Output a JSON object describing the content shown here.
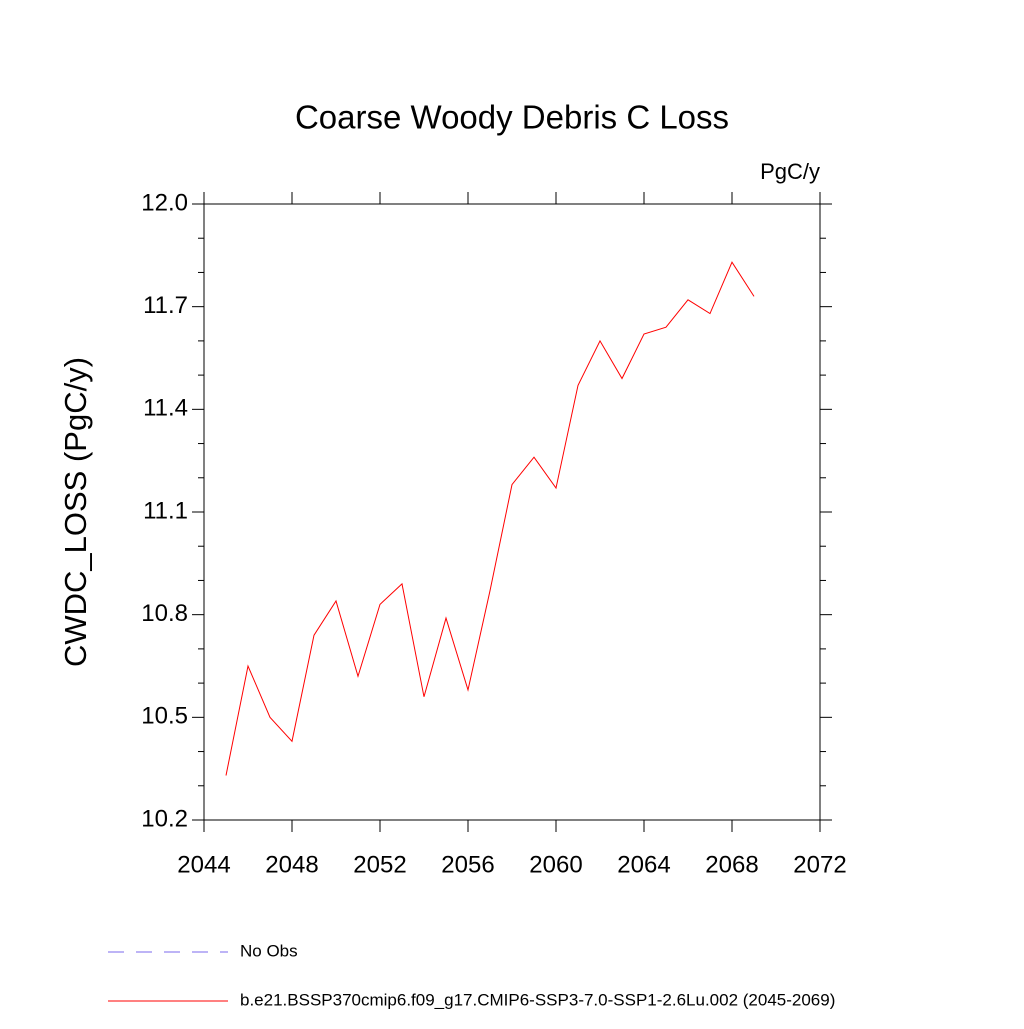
{
  "chart_data": {
    "type": "line",
    "title": "Coarse Woody Debris C Loss",
    "units": "PgC/y",
    "y_label": "CWDC_LOSS  (PgC/y)",
    "x": [
      2045,
      2046,
      2047,
      2048,
      2049,
      2050,
      2051,
      2052,
      2053,
      2054,
      2055,
      2056,
      2057,
      2058,
      2059,
      2060,
      2061,
      2062,
      2063,
      2064,
      2065,
      2066,
      2067,
      2068,
      2069
    ],
    "series": [
      {
        "name": "b.e21.BSSP370cmip6.f09_g17.CMIP6-SSP3-7.0-SSP1-2.6Lu.002 (2045-2069)",
        "color": "#ff0000",
        "values": [
          10.33,
          10.65,
          10.5,
          10.43,
          10.74,
          10.84,
          10.62,
          10.83,
          10.89,
          10.56,
          10.79,
          10.58,
          10.87,
          11.18,
          11.26,
          11.17,
          11.47,
          11.6,
          11.49,
          11.62,
          11.64,
          11.72,
          11.68,
          11.83,
          11.73
        ]
      }
    ],
    "obs_legend": {
      "name": "No Obs",
      "color": "#7b68ee",
      "dashed": true
    },
    "xlim": [
      2044,
      2072
    ],
    "xticks": [
      2044,
      2048,
      2052,
      2056,
      2060,
      2064,
      2068,
      2072
    ],
    "ylim": [
      10.2,
      12.0
    ],
    "yticks": [
      10.2,
      10.5,
      10.8,
      11.1,
      11.4,
      11.7,
      {
        "value": 12.0,
        "label": "12.0"
      }
    ],
    "yminorticks": [
      10.3,
      10.4,
      10.6,
      10.7,
      10.9,
      11.0,
      11.2,
      11.3,
      11.5,
      11.6,
      11.8,
      11.9
    ]
  }
}
